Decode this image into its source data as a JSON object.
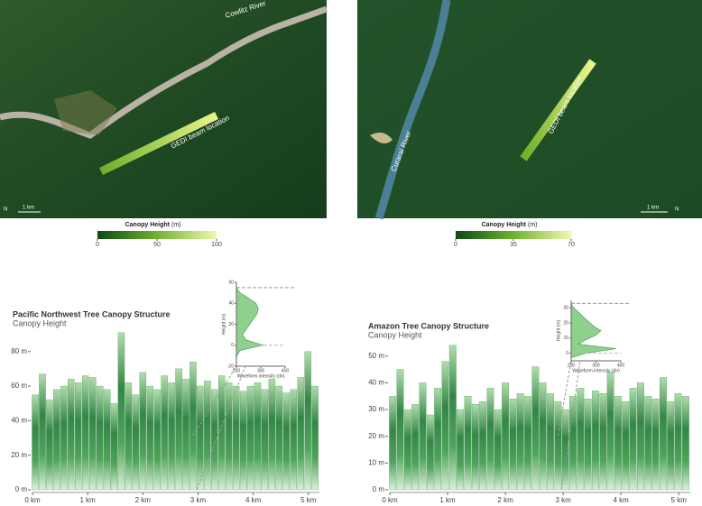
{
  "maps": [
    {
      "river_label": "Cowlitz River",
      "beam_label": "GEDI beam location",
      "scale_label": "1 km",
      "north_label": "N",
      "colorbar": {
        "title": "Canopy Height",
        "unit": "(m)",
        "lim": [
          0,
          100
        ],
        "ticks": [
          0,
          50,
          100
        ]
      }
    },
    {
      "river_label": "Curaraí River",
      "beam_label": "GEDI beam location",
      "scale_label": "1 km",
      "north_label": "N",
      "colorbar": {
        "title": "Canopy Height",
        "unit": "(m)",
        "lim": [
          0,
          70
        ],
        "ticks": [
          0,
          35,
          70
        ]
      }
    }
  ],
  "chart_data": [
    {
      "type": "bar",
      "title": "Pacific Northwest Tree Canopy Structure",
      "subtitle": "Canopy Height",
      "color": "#2e8b3e",
      "x": [
        0.05,
        0.18,
        0.31,
        0.44,
        0.57,
        0.7,
        0.83,
        0.96,
        1.09,
        1.22,
        1.35,
        1.48,
        1.61,
        1.74,
        1.87,
        2.0,
        2.13,
        2.26,
        2.39,
        2.52,
        2.65,
        2.78,
        2.91,
        3.04,
        3.17,
        3.3,
        3.43,
        3.56,
        3.69,
        3.82,
        3.95,
        4.08,
        4.21,
        4.34,
        4.47,
        4.6,
        4.73,
        4.86,
        4.99,
        5.12
      ],
      "values": [
        55,
        67,
        52,
        58,
        60,
        64,
        62,
        66,
        65,
        60,
        58,
        50,
        91,
        62,
        55,
        68,
        60,
        58,
        66,
        62,
        70,
        64,
        74,
        60,
        63,
        58,
        66,
        62,
        60,
        57,
        60,
        62,
        58,
        64,
        60,
        56,
        58,
        65,
        80,
        60
      ],
      "xlim": [
        0,
        5.2
      ],
      "xticks": [
        {
          "value": 0,
          "label": "0 km"
        },
        {
          "value": 1,
          "label": "1 km"
        },
        {
          "value": 2,
          "label": "2 km"
        },
        {
          "value": 3,
          "label": "3 km"
        },
        {
          "value": 4,
          "label": "4 km"
        },
        {
          "value": 5,
          "label": "5 km"
        }
      ],
      "ylim": [
        0,
        95
      ],
      "yticks": [
        {
          "value": 0,
          "label": "0 m"
        },
        {
          "value": 20,
          "label": "20 m"
        },
        {
          "value": 40,
          "label": "40 m"
        },
        {
          "value": 60,
          "label": "60 m"
        },
        {
          "value": 80,
          "label": "80 m"
        }
      ],
      "inset": {
        "type": "area",
        "y_label": "Height (m)",
        "x_label": "Waveform intensity (dn)",
        "xlim": [
          200,
          400
        ],
        "xticks": [
          200,
          300,
          400
        ],
        "ylim": [
          -20,
          60
        ],
        "yticks": [
          -20,
          0,
          20,
          40,
          60
        ],
        "y": [
          -15,
          -10,
          -5,
          0,
          5,
          10,
          15,
          20,
          25,
          30,
          35,
          40,
          45,
          50,
          55
        ],
        "values": [
          200,
          202,
          215,
          310,
          240,
          225,
          240,
          255,
          270,
          285,
          290,
          280,
          250,
          215,
          200
        ]
      }
    },
    {
      "type": "bar",
      "title": "Amazon Tree Canopy Structure",
      "subtitle": "Canopy Height",
      "color": "#2e8b3e",
      "x": [
        0.05,
        0.18,
        0.31,
        0.44,
        0.57,
        0.7,
        0.83,
        0.96,
        1.09,
        1.22,
        1.35,
        1.48,
        1.61,
        1.74,
        1.87,
        2.0,
        2.13,
        2.26,
        2.39,
        2.52,
        2.65,
        2.78,
        2.91,
        3.04,
        3.17,
        3.3,
        3.43,
        3.56,
        3.69,
        3.82,
        3.95,
        4.08,
        4.21,
        4.34,
        4.47,
        4.6,
        4.73,
        4.86,
        4.99,
        5.12
      ],
      "values": [
        35,
        45,
        30,
        32,
        40,
        28,
        38,
        48,
        54,
        30,
        35,
        32,
        33,
        38,
        30,
        40,
        34,
        36,
        35,
        46,
        40,
        36,
        33,
        30,
        35,
        38,
        34,
        37,
        36,
        44,
        35,
        33,
        38,
        40,
        35,
        34,
        42,
        33,
        36,
        35
      ],
      "xlim": [
        0,
        5.2
      ],
      "xticks": [
        {
          "value": 0,
          "label": "0 km"
        },
        {
          "value": 1,
          "label": "1 km"
        },
        {
          "value": 2,
          "label": "2 km"
        },
        {
          "value": 3,
          "label": "3 km"
        },
        {
          "value": 4,
          "label": "4 km"
        },
        {
          "value": 5,
          "label": "5 km"
        }
      ],
      "ylim": [
        0,
        58
      ],
      "yticks": [
        {
          "value": 0,
          "label": "0 m"
        },
        {
          "value": 10,
          "label": "10 m"
        },
        {
          "value": 20,
          "label": "20 m"
        },
        {
          "value": 30,
          "label": "30 m"
        },
        {
          "value": 40,
          "label": "40 m"
        },
        {
          "value": 50,
          "label": "50 m"
        }
      ],
      "inset": {
        "type": "area",
        "y_label": "Height (m)",
        "x_label": "Waveform intensity (dn)",
        "xlim": [
          200,
          400
        ],
        "xticks": [
          200,
          300,
          400
        ],
        "ylim": [
          -5,
          35
        ],
        "yticks": [
          0,
          10,
          20,
          30
        ],
        "y": [
          -3,
          0,
          3,
          6,
          9,
          12,
          15,
          18,
          21,
          24,
          27,
          30,
          33
        ],
        "values": [
          200,
          260,
          380,
          230,
          260,
          300,
          320,
          290,
          270,
          250,
          230,
          210,
          200
        ]
      }
    }
  ]
}
